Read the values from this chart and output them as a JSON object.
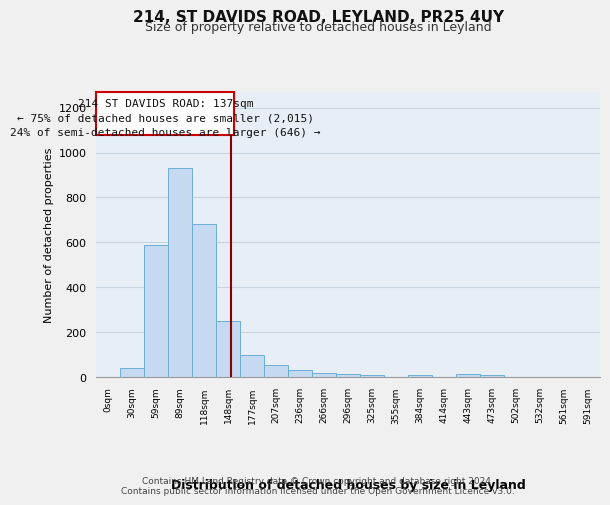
{
  "title1": "214, ST DAVIDS ROAD, LEYLAND, PR25 4UY",
  "title2": "Size of property relative to detached houses in Leyland",
  "xlabel": "Distribution of detached houses by size in Leyland",
  "ylabel": "Number of detached properties",
  "bar_labels": [
    "0sqm",
    "30sqm",
    "59sqm",
    "89sqm",
    "118sqm",
    "148sqm",
    "177sqm",
    "207sqm",
    "236sqm",
    "266sqm",
    "296sqm",
    "325sqm",
    "355sqm",
    "384sqm",
    "414sqm",
    "443sqm",
    "473sqm",
    "502sqm",
    "532sqm",
    "561sqm",
    "591sqm"
  ],
  "bar_values": [
    0,
    40,
    590,
    930,
    680,
    250,
    100,
    55,
    30,
    20,
    15,
    10,
    0,
    10,
    0,
    15,
    10,
    0,
    0,
    0,
    0
  ],
  "bar_color": "#c5d9f0",
  "bar_edge_color": "#6baed6",
  "annotation_line1": "214 ST DAVIDS ROAD: 137sqm",
  "annotation_line2": "← 75% of detached houses are smaller (2,015)",
  "annotation_line3": "24% of semi-detached houses are larger (646) →",
  "vline_color": "#8b0000",
  "ylim": [
    0,
    1270
  ],
  "yticks": [
    0,
    200,
    400,
    600,
    800,
    1000,
    1200
  ],
  "footer1": "Contains HM Land Registry data © Crown copyright and database right 2024.",
  "footer2": "Contains public sector information licensed under the Open Government Licence v3.0.",
  "bg_color": "#f0f0f0",
  "plot_bg_color": "#e8eef5",
  "grid_color": "#c8d4e0",
  "annotation_box_color": "white",
  "annotation_border_color": "#cc0000",
  "title1_fontsize": 11,
  "title2_fontsize": 9
}
